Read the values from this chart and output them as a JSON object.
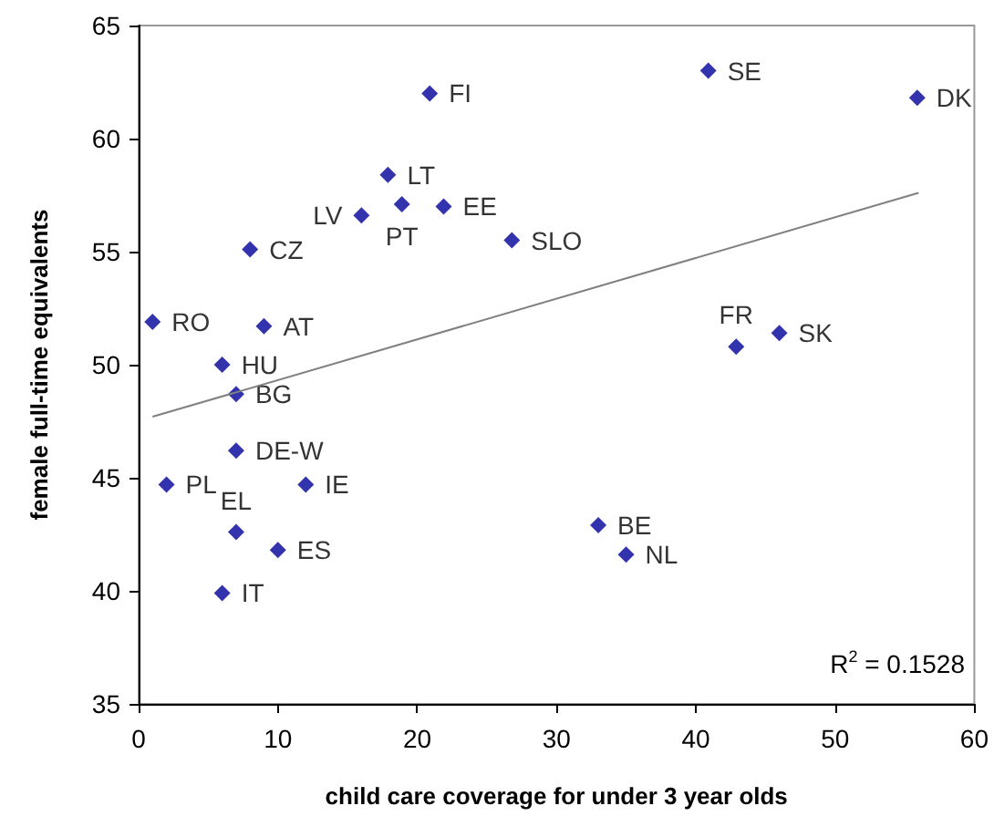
{
  "chart_data": {
    "type": "scatter",
    "xlabel": "child care coverage for under 3 year olds",
    "ylabel": "female full-time equivalents",
    "xlim": [
      0,
      60
    ],
    "xticks": [
      0,
      10,
      20,
      30,
      40,
      50,
      60
    ],
    "ylim": [
      35,
      65
    ],
    "yticks": [
      35,
      40,
      45,
      50,
      55,
      60,
      65
    ],
    "grid": false,
    "legend": false,
    "marker": "diamond",
    "series": [
      {
        "name": "FI",
        "color": "#000099",
        "x": [
          20.9
        ],
        "values": [
          62.0
        ]
      },
      {
        "name": "LT",
        "color": "#000099",
        "x": [
          17.9
        ],
        "values": [
          58.4
        ]
      },
      {
        "name": "LV",
        "color": "#000099",
        "x": [
          16.0
        ],
        "values": [
          56.6
        ]
      },
      {
        "name": "PT",
        "color": "#000099",
        "x": [
          18.9
        ],
        "values": [
          57.1
        ]
      },
      {
        "name": "EE",
        "color": "#000099",
        "x": [
          21.9
        ],
        "values": [
          57.0
        ]
      },
      {
        "name": "SLO",
        "color": "#000099",
        "x": [
          26.8
        ],
        "values": [
          55.5
        ]
      },
      {
        "name": "CZ",
        "color": "#000099",
        "x": [
          8.0
        ],
        "values": [
          55.1
        ]
      },
      {
        "name": "RO",
        "color": "#000099",
        "x": [
          1.0
        ],
        "values": [
          51.9
        ]
      },
      {
        "name": "AT",
        "color": "#000099",
        "x": [
          9.0
        ],
        "values": [
          51.7
        ]
      },
      {
        "name": "HU",
        "color": "#000099",
        "x": [
          6.0
        ],
        "values": [
          50.0
        ]
      },
      {
        "name": "BG",
        "color": "#000099",
        "x": [
          7.0
        ],
        "values": [
          48.7
        ]
      },
      {
        "name": "DE-W",
        "color": "#000099",
        "x": [
          7.0
        ],
        "values": [
          46.2
        ]
      },
      {
        "name": "PL",
        "color": "#000099",
        "x": [
          2.0
        ],
        "values": [
          44.7
        ]
      },
      {
        "name": "IE",
        "color": "#000099",
        "x": [
          12.0
        ],
        "values": [
          44.7
        ]
      },
      {
        "name": "EL",
        "color": "#000099",
        "x": [
          7.0
        ],
        "values": [
          42.6
        ]
      },
      {
        "name": "ES",
        "color": "#000099",
        "x": [
          10.0
        ],
        "values": [
          41.8
        ]
      },
      {
        "name": "IT",
        "color": "#000099",
        "x": [
          6.0
        ],
        "values": [
          39.9
        ]
      },
      {
        "name": "SE",
        "color": "#000099",
        "x": [
          40.9
        ],
        "values": [
          63.0
        ]
      },
      {
        "name": "DK",
        "color": "#000099",
        "x": [
          55.9
        ],
        "values": [
          61.8
        ]
      },
      {
        "name": "SK",
        "color": "#000099",
        "x": [
          46.0
        ],
        "values": [
          51.4
        ]
      },
      {
        "name": "FR",
        "color": "#000099",
        "x": [
          42.9
        ],
        "values": [
          50.8
        ]
      },
      {
        "name": "BE",
        "color": "#000099",
        "x": [
          33.0
        ],
        "values": [
          42.9
        ]
      },
      {
        "name": "NL",
        "color": "#000099",
        "x": [
          35.0
        ],
        "values": [
          41.6
        ]
      },
      {
        "type": "line",
        "color": "#808080",
        "marker": "none",
        "x": [
          1.0,
          56.0
        ],
        "values": [
          47.7,
          57.6
        ]
      }
    ],
    "annotations": [
      "R$^{2}$ = 0.1528"
    ]
  }
}
